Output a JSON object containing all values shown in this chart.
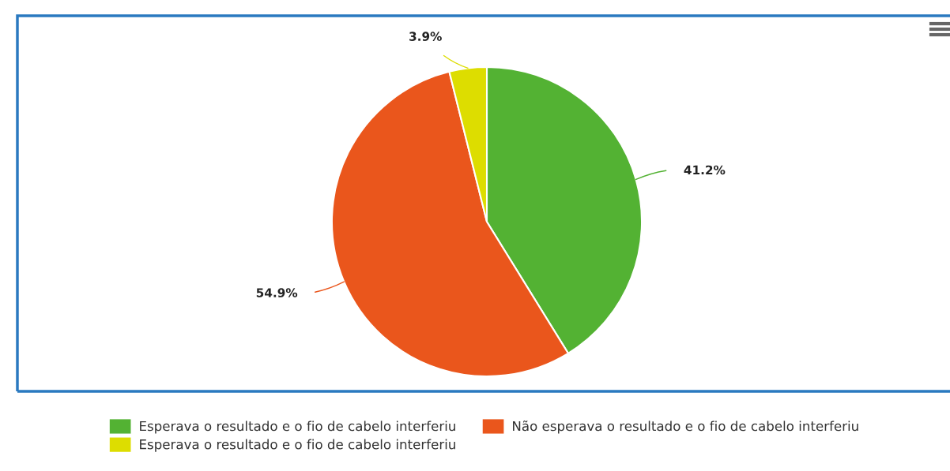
{
  "chart_data": {
    "type": "pie",
    "categories": [
      "Esperava o resultado e o fio de cabelo interferiu",
      "Não esperava o resultado e o fio de cabelo interferiu",
      "Esperava o resultado e o fio de cabelo interferiu"
    ],
    "values": [
      41.2,
      54.9,
      3.9
    ],
    "colors": [
      "#53b233",
      "#ea561c",
      "#dddd00"
    ],
    "value_labels": [
      "41.2%",
      "54.9%",
      "3.9%"
    ],
    "legend": "bottom"
  }
}
